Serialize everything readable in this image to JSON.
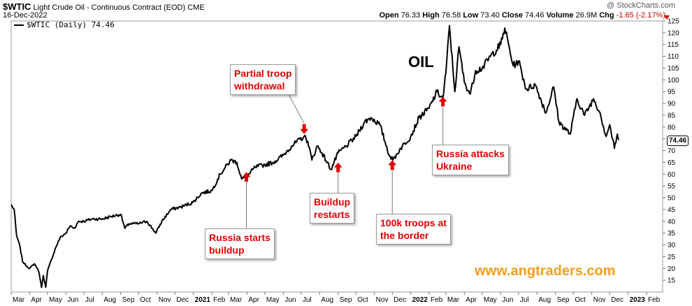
{
  "header": {
    "symbol": "$WTIC",
    "description": "Light Crude Oil - Continuous Contract (EOD)",
    "exchange": "CME",
    "date": "16-Dec-2022",
    "credit": "@ StockCharts.com",
    "open_label": "Open",
    "open": "76.33",
    "high_label": "High",
    "high": "76.58",
    "low_label": "Low",
    "low": "73.40",
    "close_label": "Close",
    "close": "74.46",
    "volume_label": "Volume",
    "volume": "26.9M",
    "chg_label": "Chg",
    "chg": "-1.65 (-2.17%)"
  },
  "legend": {
    "entry": "$WTIC (Daily) 74.46"
  },
  "overlay": {
    "title": "OIL",
    "watermark": "www.angtraders.com",
    "last_value": "74.46"
  },
  "annotations": [
    {
      "id": "a1",
      "text": "Partial troop\nwithdrawal",
      "arrow": "down",
      "date": "2021-07-06",
      "price": 75
    },
    {
      "id": "a2",
      "text": "Russia starts\nbuildup",
      "arrow": "up",
      "date": "2021-03-31",
      "price": 60
    },
    {
      "id": "a3",
      "text": "Buildup\nrestarts",
      "arrow": "up",
      "date": "2021-09-01",
      "price": 64
    },
    {
      "id": "a4",
      "text": "100k troops at\nthe border",
      "arrow": "up",
      "date": "2021-12-01",
      "price": 65
    },
    {
      "id": "a5",
      "text": "Russia attacks\nUkraine",
      "arrow": "up",
      "date": "2022-02-24",
      "price": 92
    }
  ],
  "chart_data": {
    "type": "line",
    "title": "Light Crude Oil - Continuous Contract (EOD)",
    "series": [
      {
        "name": "$WTIC (Daily) 74.46",
        "color": "#000000",
        "points": [
          [
            "2020-03-01",
            47
          ],
          [
            "2020-03-06",
            45
          ],
          [
            "2020-03-10",
            34
          ],
          [
            "2020-03-16",
            29
          ],
          [
            "2020-03-20",
            23
          ],
          [
            "2020-03-27",
            21
          ],
          [
            "2020-04-01",
            20
          ],
          [
            "2020-04-09",
            22
          ],
          [
            "2020-04-14",
            20
          ],
          [
            "2020-04-17",
            18
          ],
          [
            "2020-04-21",
            12
          ],
          [
            "2020-04-24",
            17
          ],
          [
            "2020-04-28",
            12
          ],
          [
            "2020-05-01",
            19
          ],
          [
            "2020-05-08",
            24
          ],
          [
            "2020-05-15",
            29
          ],
          [
            "2020-05-22",
            33
          ],
          [
            "2020-06-01",
            35
          ],
          [
            "2020-06-08",
            38
          ],
          [
            "2020-06-15",
            37
          ],
          [
            "2020-06-22",
            40
          ],
          [
            "2020-07-01",
            40
          ],
          [
            "2020-07-15",
            41
          ],
          [
            "2020-08-01",
            41
          ],
          [
            "2020-08-15",
            42
          ],
          [
            "2020-09-01",
            43
          ],
          [
            "2020-09-08",
            37
          ],
          [
            "2020-09-15",
            39
          ],
          [
            "2020-10-01",
            39
          ],
          [
            "2020-10-15",
            40
          ],
          [
            "2020-10-30",
            35
          ],
          [
            "2020-11-09",
            40
          ],
          [
            "2020-11-24",
            45
          ],
          [
            "2020-12-10",
            46
          ],
          [
            "2020-12-31",
            48
          ],
          [
            "2021-01-15",
            52
          ],
          [
            "2021-02-01",
            53
          ],
          [
            "2021-02-15",
            60
          ],
          [
            "2021-03-05",
            66
          ],
          [
            "2021-03-15",
            65
          ],
          [
            "2021-03-23",
            58
          ],
          [
            "2021-04-01",
            59
          ],
          [
            "2021-04-15",
            63
          ],
          [
            "2021-05-01",
            64
          ],
          [
            "2021-05-15",
            65
          ],
          [
            "2021-06-01",
            68
          ],
          [
            "2021-06-15",
            72
          ],
          [
            "2021-07-06",
            76
          ],
          [
            "2021-07-12",
            74
          ],
          [
            "2021-07-19",
            66
          ],
          [
            "2021-07-28",
            72
          ],
          [
            "2021-08-05",
            69
          ],
          [
            "2021-08-20",
            62
          ],
          [
            "2021-09-01",
            69
          ],
          [
            "2021-09-15",
            72
          ],
          [
            "2021-10-01",
            76
          ],
          [
            "2021-10-15",
            82
          ],
          [
            "2021-10-26",
            84
          ],
          [
            "2021-11-10",
            81
          ],
          [
            "2021-11-26",
            68
          ],
          [
            "2021-12-02",
            66
          ],
          [
            "2021-12-15",
            71
          ],
          [
            "2022-01-01",
            76
          ],
          [
            "2022-01-15",
            84
          ],
          [
            "2022-02-01",
            88
          ],
          [
            "2022-02-14",
            95
          ],
          [
            "2022-02-24",
            92
          ],
          [
            "2022-03-01",
            103
          ],
          [
            "2022-03-07",
            123
          ],
          [
            "2022-03-16",
            95
          ],
          [
            "2022-03-23",
            114
          ],
          [
            "2022-04-01",
            99
          ],
          [
            "2022-04-11",
            94
          ],
          [
            "2022-04-20",
            104
          ],
          [
            "2022-05-01",
            105
          ],
          [
            "2022-05-15",
            110
          ],
          [
            "2022-06-01",
            115
          ],
          [
            "2022-06-08",
            122
          ],
          [
            "2022-06-22",
            106
          ],
          [
            "2022-07-01",
            108
          ],
          [
            "2022-07-14",
            96
          ],
          [
            "2022-07-29",
            98
          ],
          [
            "2022-08-16",
            86
          ],
          [
            "2022-08-29",
            97
          ],
          [
            "2022-09-07",
            82
          ],
          [
            "2022-09-26",
            77
          ],
          [
            "2022-10-07",
            92
          ],
          [
            "2022-10-20",
            85
          ],
          [
            "2022-11-04",
            92
          ],
          [
            "2022-11-15",
            86
          ],
          [
            "2022-11-25",
            76
          ],
          [
            "2022-12-01",
            81
          ],
          [
            "2022-12-09",
            71
          ],
          [
            "2022-12-14",
            77
          ],
          [
            "2022-12-16",
            74.46
          ]
        ]
      }
    ],
    "ylim": [
      10,
      125
    ],
    "yticks": [
      15,
      20,
      25,
      30,
      35,
      40,
      45,
      50,
      55,
      60,
      65,
      70,
      75,
      80,
      85,
      90,
      95,
      100,
      105,
      110,
      115,
      120,
      125
    ],
    "xlim": [
      "2020-03-01",
      "2023-02-28"
    ],
    "xticks": [
      [
        "2020-03-01",
        "Mar"
      ],
      [
        "2020-04-01",
        "Apr"
      ],
      [
        "2020-05-01",
        "May"
      ],
      [
        "2020-06-01",
        "Jun"
      ],
      [
        "2020-07-01",
        "Jul"
      ],
      [
        "2020-08-01",
        "Aug"
      ],
      [
        "2020-09-01",
        "Sep"
      ],
      [
        "2020-10-01",
        "Oct"
      ],
      [
        "2020-11-01",
        "Nov"
      ],
      [
        "2020-12-01",
        "Dec"
      ],
      [
        "2021-01-01",
        "2021"
      ],
      [
        "2021-02-01",
        "Feb"
      ],
      [
        "2021-03-01",
        "Mar"
      ],
      [
        "2021-04-01",
        "Apr"
      ],
      [
        "2021-05-01",
        "May"
      ],
      [
        "2021-06-01",
        "Jun"
      ],
      [
        "2021-07-01",
        "Jul"
      ],
      [
        "2021-08-01",
        "Aug"
      ],
      [
        "2021-09-01",
        "Sep"
      ],
      [
        "2021-10-01",
        "Oct"
      ],
      [
        "2021-11-01",
        "Nov"
      ],
      [
        "2021-12-01",
        "Dec"
      ],
      [
        "2022-01-01",
        "2022"
      ],
      [
        "2022-02-01",
        "Feb"
      ],
      [
        "2022-03-01",
        "Mar"
      ],
      [
        "2022-04-01",
        "Apr"
      ],
      [
        "2022-05-01",
        "May"
      ],
      [
        "2022-06-01",
        "Jun"
      ],
      [
        "2022-07-01",
        "Jul"
      ],
      [
        "2022-08-01",
        "Aug"
      ],
      [
        "2022-09-01",
        "Sep"
      ],
      [
        "2022-10-01",
        "Oct"
      ],
      [
        "2022-11-01",
        "Nov"
      ],
      [
        "2022-12-01",
        "Dec"
      ],
      [
        "2023-01-01",
        "2023"
      ],
      [
        "2023-02-01",
        "Feb"
      ]
    ],
    "bold_xticks": [
      "2021",
      "2022",
      "2023"
    ],
    "grid": false,
    "legend_position": "top-left"
  }
}
